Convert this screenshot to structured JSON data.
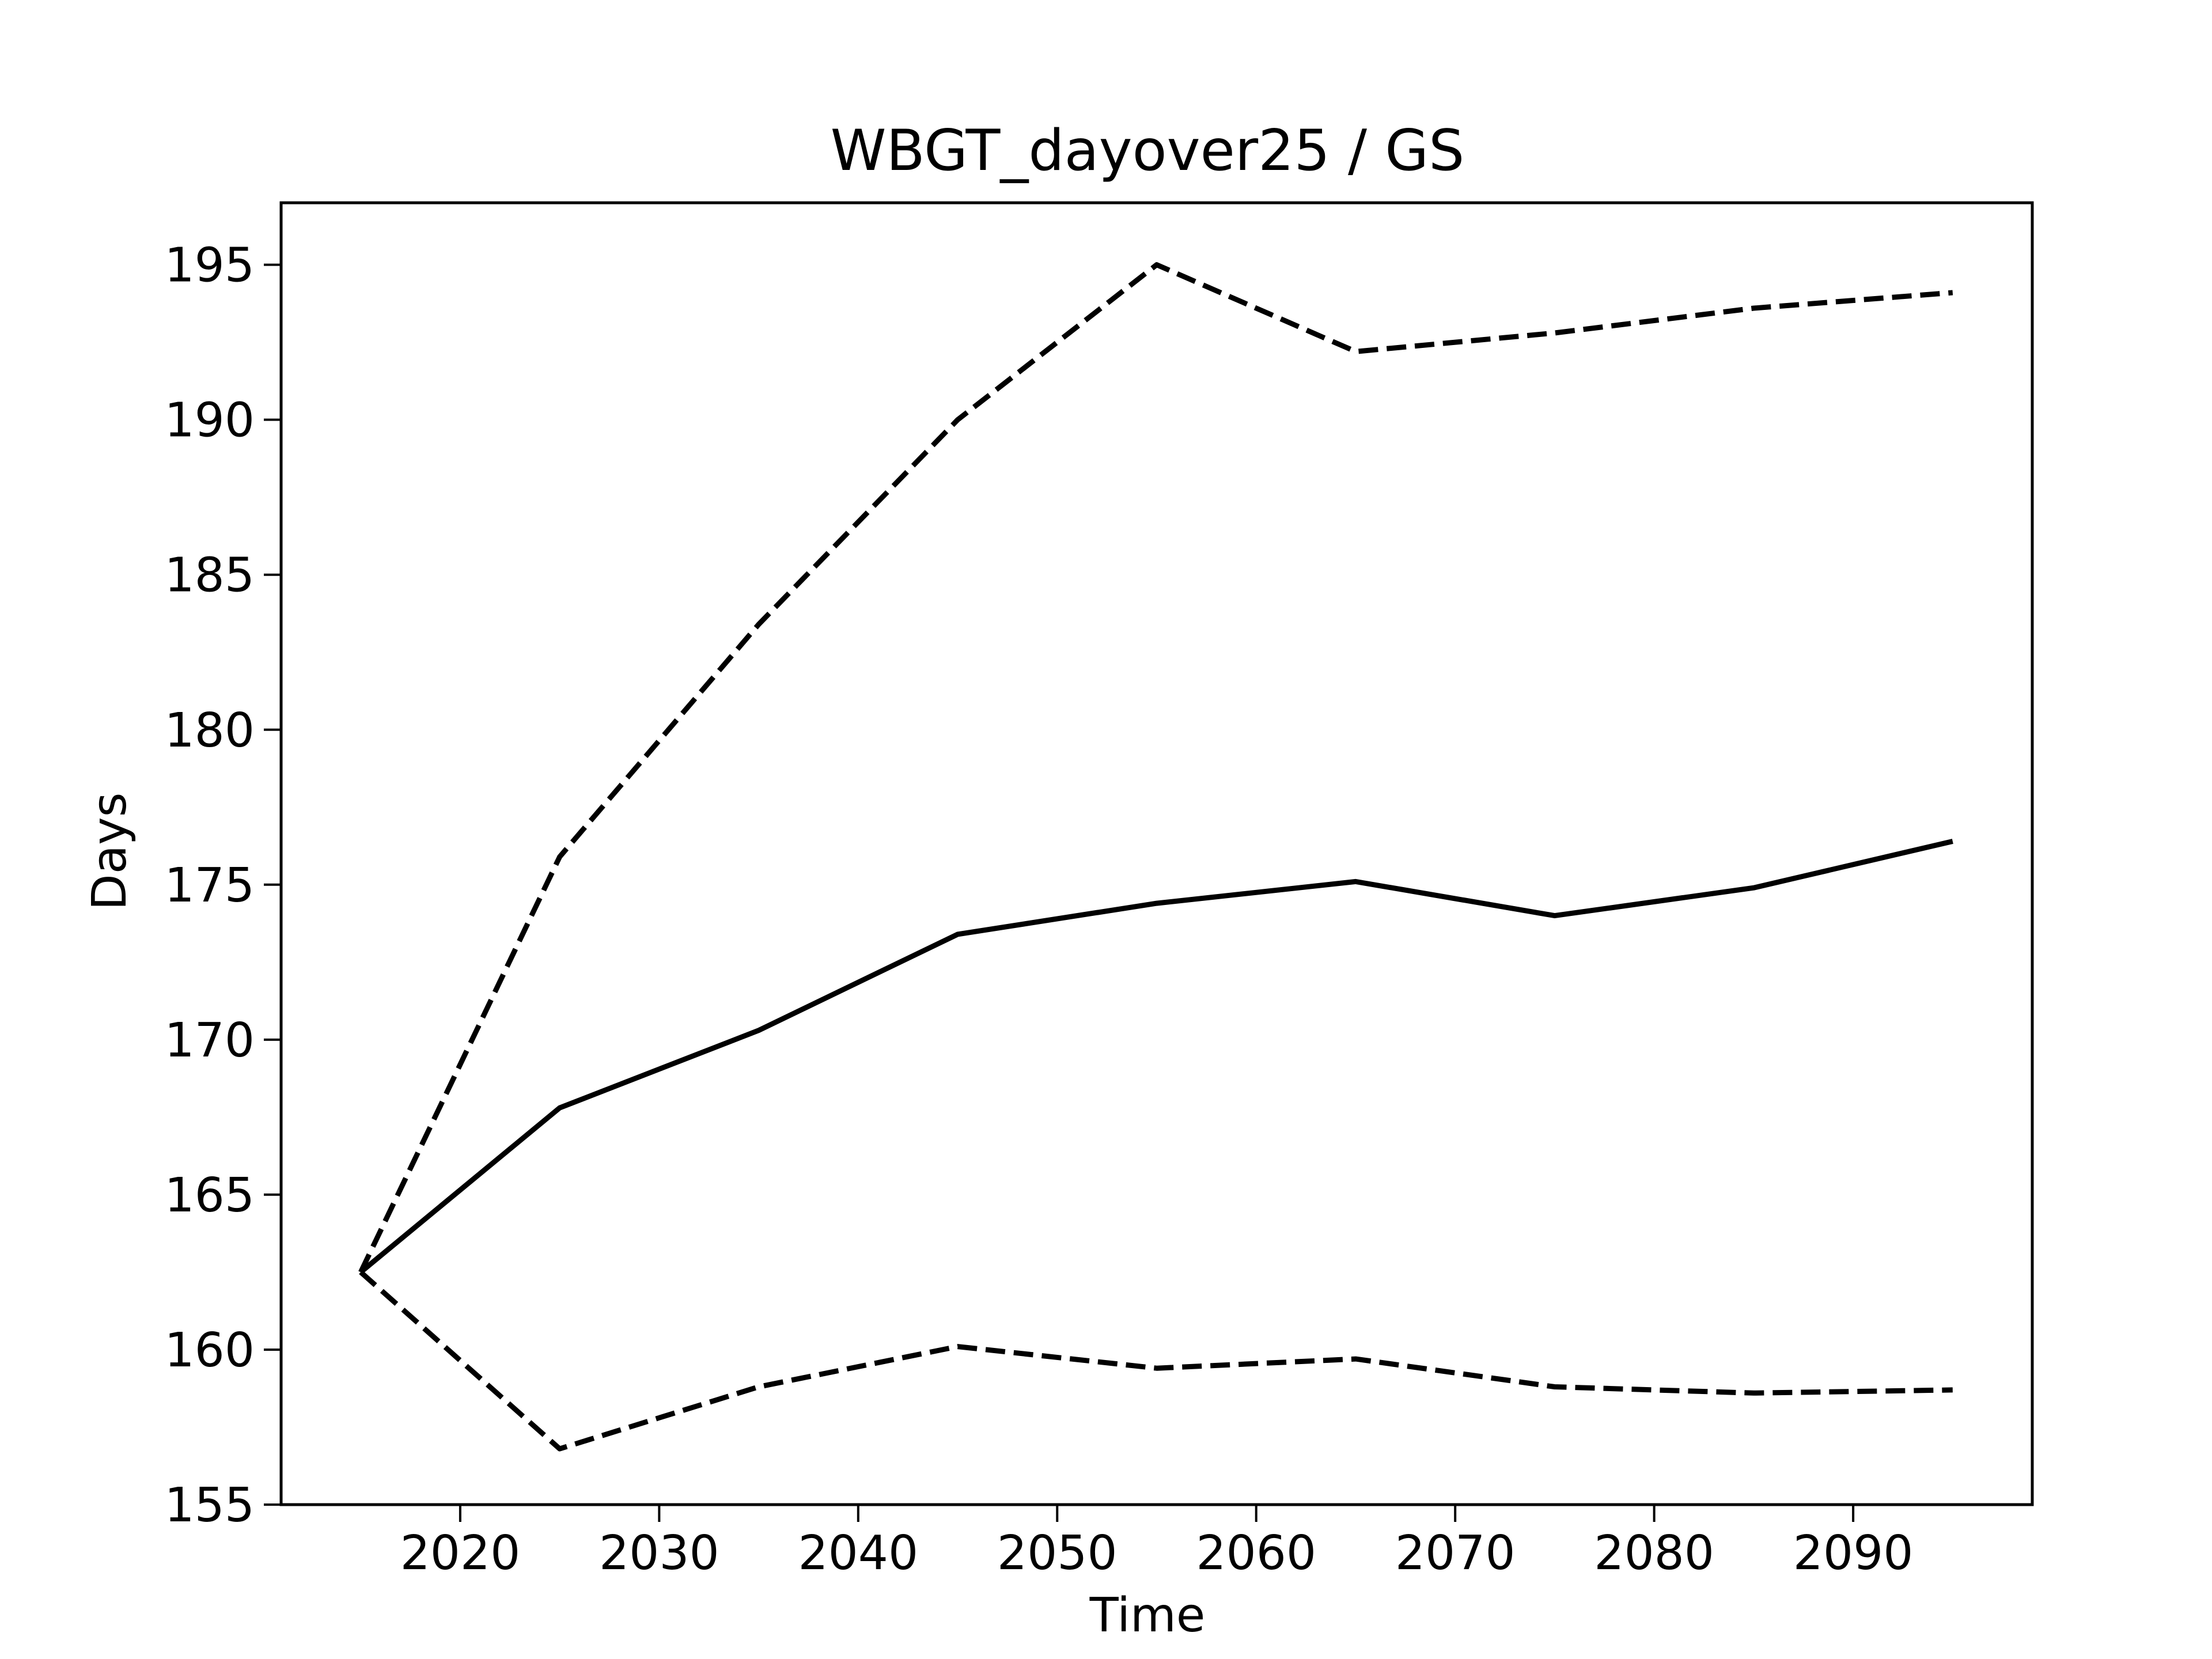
{
  "chart_data": {
    "type": "line",
    "title": "WBGT_dayover25 / GS",
    "xlabel": "Time",
    "ylabel": "Days",
    "xlim": [
      2011,
      2099
    ],
    "ylim": [
      155,
      197
    ],
    "x_ticks": [
      2020,
      2030,
      2040,
      2050,
      2060,
      2070,
      2080,
      2090
    ],
    "y_ticks": [
      155,
      160,
      165,
      170,
      175,
      180,
      185,
      190,
      195
    ],
    "grid": false,
    "legend": "none",
    "x": [
      2015,
      2025,
      2035,
      2045,
      2055,
      2065,
      2075,
      2085,
      2095
    ],
    "series": [
      {
        "style": "solid",
        "color": "#000000",
        "values": [
          162.5,
          167.8,
          170.3,
          173.4,
          174.4,
          175.1,
          174.0,
          174.9,
          176.4
        ]
      },
      {
        "style": "dashed",
        "color": "#000000",
        "values": [
          162.5,
          175.9,
          183.4,
          190.0,
          195.0,
          192.2,
          192.8,
          193.6,
          194.1
        ]
      },
      {
        "style": "dashed",
        "color": "#000000",
        "values": [
          162.5,
          156.8,
          158.8,
          160.1,
          159.4,
          159.7,
          158.8,
          158.6,
          158.7
        ]
      }
    ]
  }
}
